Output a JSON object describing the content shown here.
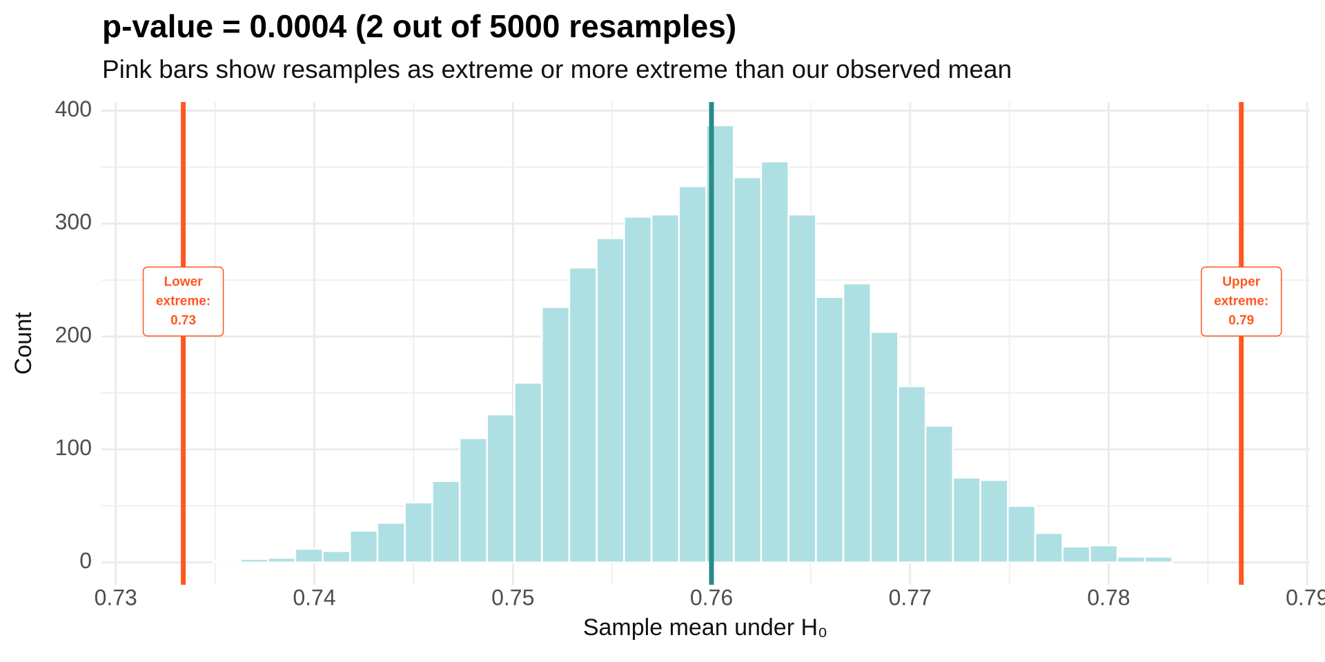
{
  "chart_data": {
    "type": "histogram",
    "title": "p-value = 0.0004 (2 out of 5000 resamples)",
    "subtitle": "Pink bars show resamples as extreme or more extreme than our observed mean",
    "x_label": "Sample mean under H₀",
    "y_label": "Count",
    "bins": [
      0.7349,
      0.73628,
      0.73766,
      0.73904,
      0.74042,
      0.7418,
      0.74318,
      0.74456,
      0.74594,
      0.74732,
      0.7487,
      0.75008,
      0.75146,
      0.75284,
      0.75422,
      0.7556,
      0.75698,
      0.75836,
      0.75974,
      0.76112,
      0.7625,
      0.76388,
      0.76526,
      0.76664,
      0.76802,
      0.7694,
      0.77078,
      0.77216,
      0.77354,
      0.77492,
      0.7763,
      0.77768,
      0.77906,
      0.78044,
      0.78182,
      0.7832
    ],
    "values": [
      1,
      3,
      4,
      12,
      10,
      28,
      35,
      53,
      72,
      110,
      131,
      159,
      226,
      261,
      287,
      306,
      308,
      333,
      387,
      341,
      355,
      308,
      235,
      247,
      204,
      156,
      121,
      75,
      73,
      50,
      26,
      14,
      15,
      5,
      5
    ],
    "color": "#aee0e3",
    "xlim": [
      0.72928,
      0.79013
    ],
    "ylim": [
      -19.8,
      407.6
    ],
    "xticks": [
      0.73,
      0.74,
      0.75,
      0.76,
      0.77,
      0.78,
      0.79
    ],
    "yticks": [
      0,
      100,
      200,
      300,
      400
    ],
    "grid": true,
    "vlines": [
      {
        "value": 0.7334,
        "color": "#ff5722",
        "label": [
          "Lower",
          "extreme:",
          "0.73"
        ]
      },
      {
        "value": 0.76,
        "color": "#2a8a8a"
      },
      {
        "value": 0.78668,
        "color": "#ff5722",
        "label": [
          "Upper",
          "extreme:",
          "0.79"
        ]
      }
    ]
  }
}
